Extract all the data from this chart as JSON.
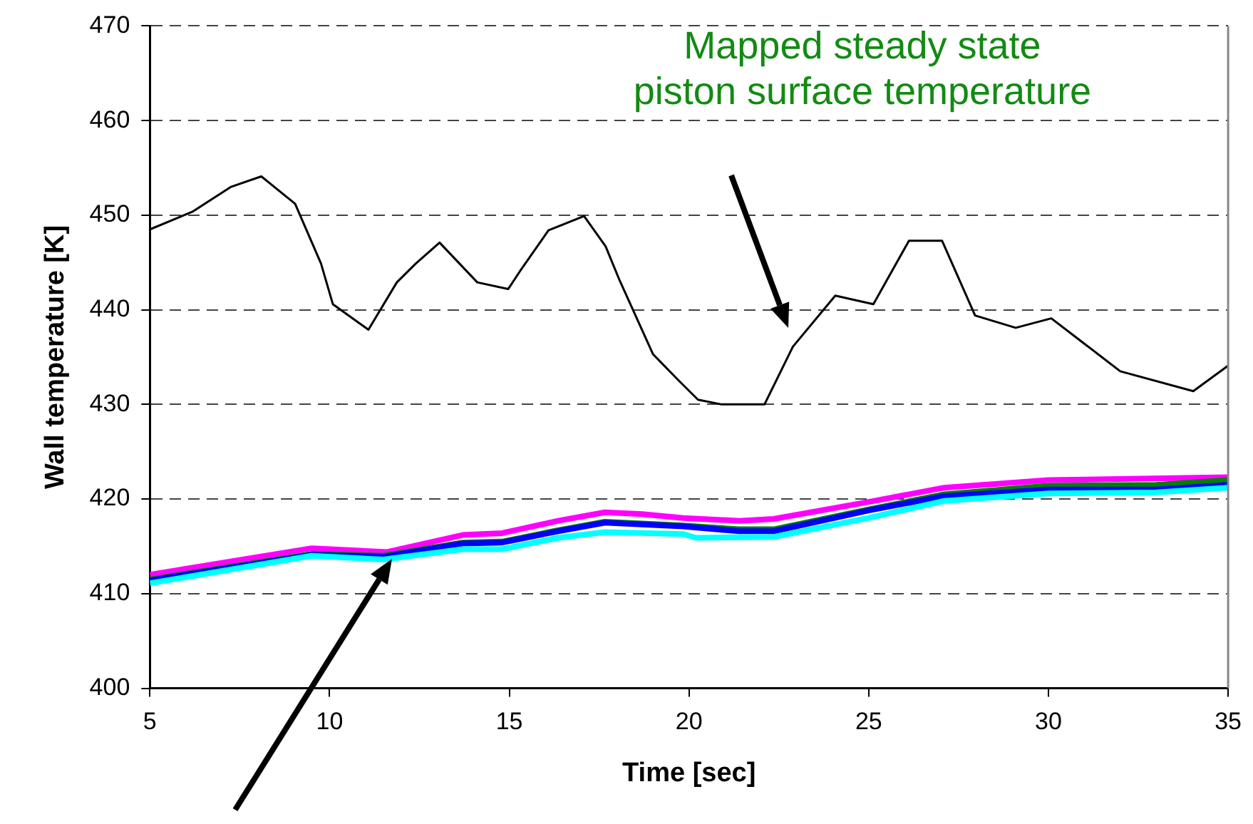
{
  "chart_data": {
    "type": "line",
    "xlabel": "Time [sec]",
    "ylabel": "Wall temperature [K]",
    "xlim": [
      5,
      35
    ],
    "xticks": [
      5,
      10,
      15,
      20,
      25,
      30,
      35
    ],
    "ylim": [
      400,
      470
    ],
    "yticks": [
      400,
      410,
      420,
      430,
      440,
      450,
      460,
      470
    ],
    "grid": "y",
    "legend": false,
    "marker": "none",
    "line_style": "solid",
    "annotations": [
      "Mapped steady state\npiston surface temperature"
    ],
    "series": [
      {
        "color": "#000000",
        "x": [
          5,
          6.2,
          7.26,
          8.1,
          9.04,
          9.76,
          10.09,
          11.08,
          11.87,
          12.4,
          13.06,
          14.11,
          14.97,
          15.3,
          16.09,
          17.08,
          17.68,
          18.07,
          19.0,
          19.72,
          20.25,
          20.91,
          22.1,
          22.89,
          24.07,
          25.13,
          26.12,
          27.04,
          27.96,
          29.09,
          30.08,
          32.0,
          34.03,
          35
        ],
        "values": [
          448.5,
          450.4,
          453.0,
          454.1,
          451.2,
          444.9,
          440.6,
          437.9,
          442.9,
          444.9,
          447.1,
          442.9,
          442.2,
          444.1,
          448.4,
          449.9,
          446.7,
          443.1,
          435.3,
          432.5,
          430.5,
          430.0,
          430.0,
          436.1,
          441.5,
          440.6,
          447.3,
          447.3,
          439.4,
          438.1,
          439.1,
          433.5,
          431.4,
          434.1
        ]
      },
      {
        "color": "#00ffff",
        "x": [
          5,
          9.5,
          11.5,
          13.7,
          14.8,
          16.36,
          17.66,
          19.84,
          20.2,
          22.36,
          25,
          27.1,
          30,
          33,
          35
        ],
        "values": [
          411.1,
          414.0,
          413.6,
          414.7,
          414.7,
          415.9,
          416.5,
          416.3,
          415.9,
          416.0,
          418.0,
          419.8,
          420.6,
          420.7,
          421.2
        ]
      },
      {
        "color": "#0000ff",
        "x": [
          5,
          9.5,
          11.5,
          13.7,
          14.8,
          16.36,
          17.66,
          19.84,
          21.4,
          22.36,
          25,
          27.1,
          30,
          33,
          35
        ],
        "values": [
          411.4,
          414.1,
          413.9,
          415.3,
          415.4,
          416.6,
          417.5,
          417.1,
          416.6,
          416.6,
          418.8,
          420.3,
          421.0,
          421.0,
          421.5
        ]
      },
      {
        "color": "#008000",
        "x": [
          5,
          9.5,
          11.5,
          13.7,
          14.8,
          16.36,
          17.66,
          19.84,
          21.4,
          22.36,
          25,
          27.1,
          30,
          33,
          35
        ],
        "values": [
          411.5,
          414.2,
          414.0,
          415.4,
          415.5,
          416.7,
          417.6,
          417.2,
          416.8,
          416.8,
          418.9,
          420.5,
          421.4,
          421.5,
          422.0
        ]
      },
      {
        "color": "#ff00ff",
        "x": [
          5,
          9.5,
          11.6,
          13.7,
          14.8,
          16.36,
          17.66,
          18.7,
          19.84,
          21.4,
          22.36,
          25,
          27.1,
          30,
          33.2,
          35
        ],
        "values": [
          412.0,
          414.8,
          414.4,
          416.2,
          416.4,
          417.7,
          418.6,
          418.4,
          418.0,
          417.7,
          417.9,
          419.7,
          421.2,
          422.0,
          422.2,
          422.3
        ]
      }
    ]
  }
}
